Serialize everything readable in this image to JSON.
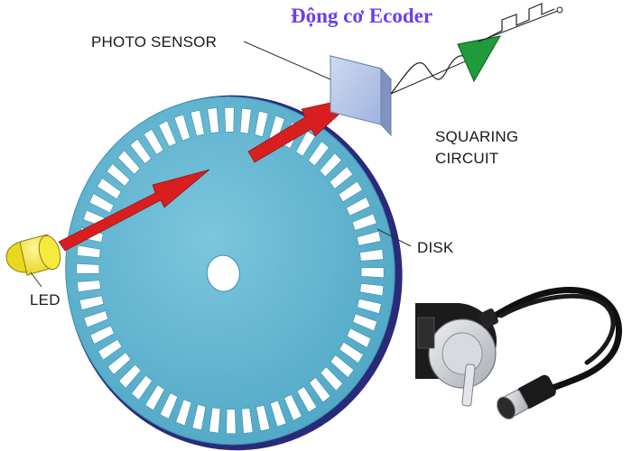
{
  "title": "Động cơ Ecoder",
  "labels": {
    "photo_sensor": "PHOTO SENSOR",
    "squaring_circuit_line1": "SQUARING",
    "squaring_circuit_line2": "CIRCUIT",
    "disk": "DISK",
    "led": "LED"
  },
  "colors": {
    "title": "#6a3ff0",
    "disk_face": "#5fb6d2",
    "disk_edge": "#2a2a7a",
    "slot": "#ffffff",
    "beam": "#d81e1e",
    "sensor_face": "#b6c6e6",
    "squaring_triangle": "#1f9b3c",
    "led": "#f2e52a",
    "encoder_body": "#1b1b1b",
    "encoder_face": "#cfd2d6",
    "cable": "#101010"
  },
  "disk": {
    "slot_count": 56
  }
}
